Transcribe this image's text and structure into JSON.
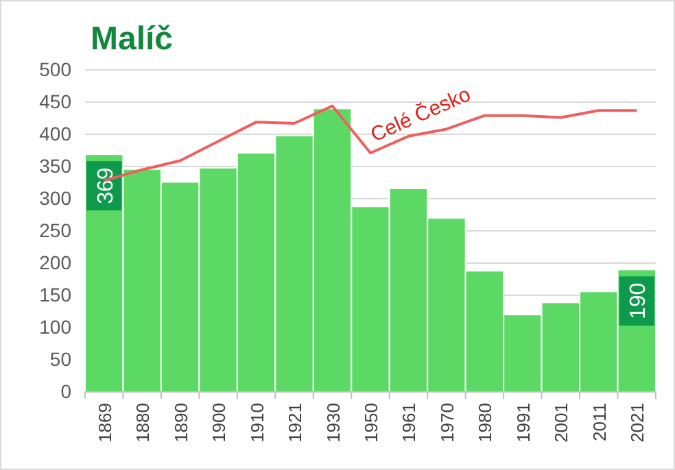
{
  "chart_data": {
    "type": "bar",
    "title": "Malíč",
    "categories": [
      "1869",
      "1880",
      "1890",
      "1900",
      "1910",
      "1921",
      "1930",
      "1950",
      "1961",
      "1970",
      "1980",
      "1991",
      "2001",
      "2011",
      "2021"
    ],
    "series": [
      {
        "color": "#5cd965",
        "values": [
          369,
          346,
          326,
          348,
          371,
          398,
          440,
          288,
          316,
          270,
          188,
          120,
          139,
          156,
          190
        ],
        "value_labels": [
          "369",
          null,
          null,
          null,
          null,
          null,
          null,
          null,
          null,
          null,
          null,
          null,
          null,
          null,
          "190"
        ]
      },
      {
        "type": "line",
        "name": "Celé Česko",
        "color": "#ee6060",
        "values": [
          328,
          345,
          359,
          389,
          419,
          417,
          444,
          371,
          397,
          408,
          429,
          429,
          426,
          437,
          437
        ]
      }
    ],
    "ylim": [
      0,
      500
    ],
    "yticks": [
      0,
      50,
      100,
      150,
      200,
      250,
      300,
      350,
      400,
      450,
      500
    ],
    "grid": "y"
  }
}
